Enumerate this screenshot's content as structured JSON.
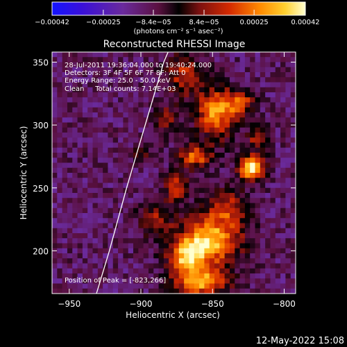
{
  "chart_data": {
    "type": "heatmap",
    "title": "Reconstructed RHESSI Image",
    "xlabel": "Heliocentric X (arcsec)",
    "ylabel": "Heliocentric Y (arcsec)",
    "xlim": [
      -962,
      -792
    ],
    "ylim": [
      166,
      358
    ],
    "xticks": [
      -950,
      -900,
      -850,
      -800
    ],
    "xtick_labels": [
      "−950",
      "−900",
      "−850",
      "−800"
    ],
    "yticks": [
      200,
      250,
      300,
      350
    ],
    "ytick_labels": [
      "200",
      "250",
      "300",
      "350"
    ],
    "colorbar": {
      "range": [
        -0.00042,
        0.00042
      ],
      "ticks": [
        -0.00042,
        -0.00025,
        -8.4e-05,
        8.4e-05,
        0.00025,
        0.00042
      ],
      "tick_labels": [
        "−0.00042",
        "−0.00025",
        "−8.4e−05",
        "8.4e−05",
        "0.00025",
        "0.00042"
      ],
      "unit_label": "(photons cm⁻² s⁻¹ asec⁻²)"
    },
    "annotations": {
      "time_range": "28-Jul-2011 19:36:04.000 to 19:40:24.000",
      "detectors": "Detectors: 3F 4F 5F 6F 7F 8F; Att 0",
      "energy": "Energy Range: 25.0 - 50.0 keV",
      "clean": "Clean     Total counts: 7.14E+03",
      "peak": "Position of Peak = [-823,266]"
    },
    "peak_position": [
      -823,
      266
    ],
    "limb_curve": [
      [
        -931,
        166
      ],
      [
        -922,
        200
      ],
      [
        -910,
        250
      ],
      [
        -897,
        300
      ],
      [
        -884,
        350
      ],
      [
        -881,
        358
      ]
    ],
    "emission_blobs": [
      {
        "x": -823,
        "y": 266,
        "sx": 6,
        "sy": 7,
        "amp": 1.0
      },
      {
        "x": -852,
        "y": 208,
        "sx": 15,
        "sy": 13,
        "amp": 0.85
      },
      {
        "x": -868,
        "y": 195,
        "sx": 9,
        "sy": 9,
        "amp": 0.65
      },
      {
        "x": -847,
        "y": 310,
        "sx": 10,
        "sy": 14,
        "amp": 0.7
      },
      {
        "x": -862,
        "y": 275,
        "sx": 8,
        "sy": 7,
        "amp": 0.6
      },
      {
        "x": -830,
        "y": 318,
        "sx": 6,
        "sy": 6,
        "amp": 0.55
      },
      {
        "x": -840,
        "y": 235,
        "sx": 10,
        "sy": 10,
        "amp": 0.45
      },
      {
        "x": -870,
        "y": 340,
        "sx": 9,
        "sy": 12,
        "amp": 0.45
      },
      {
        "x": -875,
        "y": 250,
        "sx": 6,
        "sy": 8,
        "amp": 0.5
      },
      {
        "x": -890,
        "y": 225,
        "sx": 8,
        "sy": 10,
        "amp": 0.4
      },
      {
        "x": -858,
        "y": 175,
        "sx": 14,
        "sy": 8,
        "amp": 0.7
      },
      {
        "x": -818,
        "y": 290,
        "sx": 5,
        "sy": 6,
        "amp": 0.45
      },
      {
        "x": -882,
        "y": 305,
        "sx": 6,
        "sy": 8,
        "amp": 0.35
      },
      {
        "x": -900,
        "y": 278,
        "sx": 5,
        "sy": 5,
        "amp": 0.25
      }
    ],
    "bg_value": -0.28
  },
  "footer": {
    "date": "12-May-2022 15:08"
  }
}
